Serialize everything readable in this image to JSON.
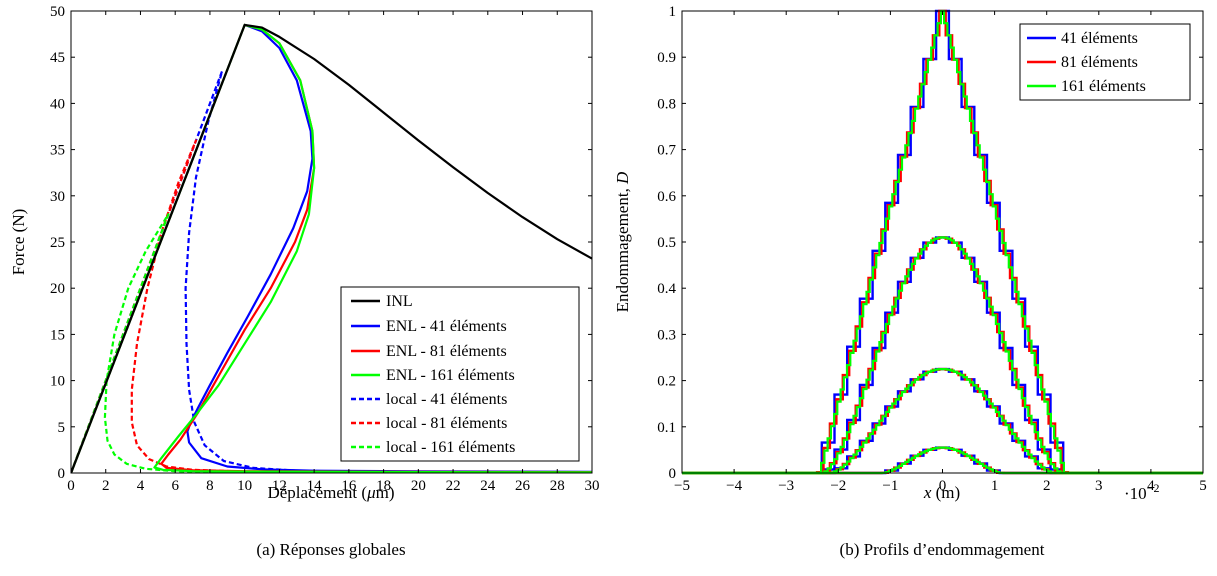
{
  "chart_data": [
    {
      "type": "line",
      "caption": "(a) Réponses globales",
      "xlabel_pre": "Déplacement (",
      "xlabel_mu": "μ",
      "xlabel_post": "m)",
      "ylabel": "Force (N)",
      "xlim": [
        0,
        30
      ],
      "ylim": [
        0,
        50
      ],
      "xticks": [
        0,
        2,
        4,
        6,
        8,
        10,
        12,
        14,
        16,
        18,
        20,
        22,
        24,
        26,
        28,
        30
      ],
      "yticks": [
        0,
        5,
        10,
        15,
        20,
        25,
        30,
        35,
        40,
        45,
        50
      ],
      "grid": false,
      "legend_position": "bottom-right",
      "colors": {
        "INL": "#000000",
        "41": "#0000ff",
        "81": "#ff0000",
        "161": "#00ff00"
      },
      "series": [
        {
          "name": "INL",
          "color": "#000000",
          "dash": "solid",
          "points": [
            [
              0,
              0
            ],
            [
              10,
              48.5
            ],
            [
              11,
              48.2
            ],
            [
              12,
              47.2
            ],
            [
              14,
              44.8
            ],
            [
              16,
              42
            ],
            [
              18,
              39
            ],
            [
              20,
              36
            ],
            [
              22,
              33.1
            ],
            [
              24,
              30.3
            ],
            [
              26,
              27.7
            ],
            [
              28,
              25.3
            ],
            [
              30,
              23.2
            ]
          ]
        },
        {
          "name": "ENL - 41 éléments",
          "color": "#0000ff",
          "dash": "solid",
          "points": [
            [
              0,
              0
            ],
            [
              10,
              48.5
            ],
            [
              11,
              47.8
            ],
            [
              12,
              46
            ],
            [
              13,
              42.5
            ],
            [
              13.8,
              37
            ],
            [
              13.9,
              34
            ],
            [
              13.6,
              30.5
            ],
            [
              12.8,
              26.5
            ],
            [
              11.5,
              21.5
            ],
            [
              10.2,
              17
            ],
            [
              9,
              13
            ],
            [
              8,
              9.5
            ],
            [
              7.3,
              7
            ],
            [
              6.9,
              5.5
            ],
            [
              6.7,
              4.5
            ],
            [
              6.8,
              3.3
            ],
            [
              7.5,
              1.6
            ],
            [
              9,
              0.7
            ],
            [
              11,
              0.4
            ],
            [
              14,
              0.25
            ],
            [
              20,
              0.18
            ],
            [
              30,
              0.12
            ]
          ]
        },
        {
          "name": "ENL - 81 éléments",
          "color": "#ff0000",
          "dash": "solid",
          "points": [
            [
              0,
              0
            ],
            [
              10,
              48.5
            ],
            [
              11,
              48
            ],
            [
              12,
              46.5
            ],
            [
              13.2,
              42.5
            ],
            [
              13.9,
              37
            ],
            [
              14,
              33
            ],
            [
              13.6,
              28.5
            ],
            [
              12.9,
              25
            ],
            [
              11.5,
              20
            ],
            [
              10,
              15.5
            ],
            [
              8.5,
              10.5
            ],
            [
              7.3,
              6.5
            ],
            [
              6.3,
              3.6
            ],
            [
              5.6,
              2
            ],
            [
              5.2,
              1
            ],
            [
              5.5,
              0.55
            ],
            [
              7,
              0.3
            ],
            [
              10,
              0.2
            ],
            [
              20,
              0.12
            ],
            [
              30,
              0.1
            ]
          ]
        },
        {
          "name": "ENL - 161 éléments",
          "color": "#00ff00",
          "dash": "solid",
          "points": [
            [
              0,
              0
            ],
            [
              10,
              48.5
            ],
            [
              11,
              48
            ],
            [
              12,
              46.5
            ],
            [
              13.2,
              42.5
            ],
            [
              13.9,
              37
            ],
            [
              14,
              33
            ],
            [
              13.7,
              28
            ],
            [
              13,
              24
            ],
            [
              11.5,
              18.5
            ],
            [
              10,
              14
            ],
            [
              8.5,
              9.5
            ],
            [
              7.2,
              6.3
            ],
            [
              6.2,
              4
            ],
            [
              5.2,
              1.6
            ],
            [
              4.8,
              0.6
            ],
            [
              5.3,
              0.35
            ],
            [
              7,
              0.2
            ],
            [
              10,
              0.15
            ],
            [
              20,
              0.1
            ],
            [
              30,
              0.08
            ]
          ]
        },
        {
          "name": "local - 41 éléments",
          "color": "#0000ff",
          "dash": "dashed",
          "points": [
            [
              0,
              0
            ],
            [
              8.7,
              43.5
            ],
            [
              7.9,
              38
            ],
            [
              7.2,
              32
            ],
            [
              6.8,
              26
            ],
            [
              6.6,
              20
            ],
            [
              6.65,
              14
            ],
            [
              6.8,
              9
            ],
            [
              7.1,
              5.5
            ],
            [
              7.7,
              3
            ],
            [
              8.8,
              1.3
            ],
            [
              10.5,
              0.55
            ],
            [
              13,
              0.25
            ],
            [
              17,
              0.12
            ],
            [
              22,
              0.06
            ],
            [
              30,
              0.03
            ]
          ]
        },
        {
          "name": "local - 81 éléments",
          "color": "#ff0000",
          "dash": "dashed",
          "points": [
            [
              0,
              0
            ],
            [
              7.2,
              36
            ],
            [
              6.2,
              31.5
            ],
            [
              5.2,
              26
            ],
            [
              4.4,
              20
            ],
            [
              3.8,
              14
            ],
            [
              3.5,
              9
            ],
            [
              3.5,
              5.5
            ],
            [
              3.8,
              3
            ],
            [
              4.5,
              1.5
            ],
            [
              5.5,
              0.7
            ],
            [
              7,
              0.35
            ],
            [
              10,
              0.15
            ],
            [
              14,
              0.08
            ],
            [
              20,
              0.04
            ],
            [
              30,
              0.02
            ]
          ]
        },
        {
          "name": "local - 161 éléments",
          "color": "#00ff00",
          "dash": "dashed",
          "points": [
            [
              0,
              0
            ],
            [
              5.6,
              28
            ],
            [
              4.3,
              24
            ],
            [
              3.3,
              20
            ],
            [
              2.5,
              15
            ],
            [
              2.05,
              10
            ],
            [
              1.95,
              6
            ],
            [
              2.1,
              3.5
            ],
            [
              2.5,
              2
            ],
            [
              3.2,
              1
            ],
            [
              4.3,
              0.45
            ],
            [
              6,
              0.2
            ],
            [
              9,
              0.1
            ],
            [
              14,
              0.05
            ],
            [
              20,
              0.03
            ],
            [
              30,
              0.02
            ]
          ]
        }
      ]
    },
    {
      "type": "line",
      "caption": "(b) Profils d’endommagement",
      "xlabel_var": "x",
      "xlabel_unit": "(m)",
      "x_multiplier": "·10",
      "x_multiplier_exp": "−2",
      "ylabel_pre": "Endommagement, ",
      "ylabel_var": "D",
      "xlim": [
        -5,
        5
      ],
      "ylim": [
        0,
        1
      ],
      "xticks": [
        -5,
        -4,
        -3,
        -2,
        -1,
        0,
        1,
        2,
        3,
        4,
        5
      ],
      "yticks": [
        0,
        0.1,
        0.2,
        0.3,
        0.4,
        0.5,
        0.6,
        0.7,
        0.8,
        0.9,
        1
      ],
      "grid": false,
      "legend_position": "top-right",
      "profiles": [
        {
          "peak": 1.0,
          "halfwidth": 2.35,
          "shape": "triangle"
        },
        {
          "peak": 0.51,
          "halfwidth": 2.3,
          "shape": "bell"
        },
        {
          "peak": 0.225,
          "halfwidth": 2.15,
          "shape": "bell"
        },
        {
          "peak": 0.055,
          "halfwidth": 1.15,
          "shape": "bell"
        }
      ],
      "series": [
        {
          "name": "41 éléments",
          "color": "#0000ff",
          "elements": 41
        },
        {
          "name": "81 éléments",
          "color": "#ff0000",
          "elements": 81
        },
        {
          "name": "161 éléments",
          "color": "#00ff00",
          "elements": 161
        }
      ]
    }
  ]
}
